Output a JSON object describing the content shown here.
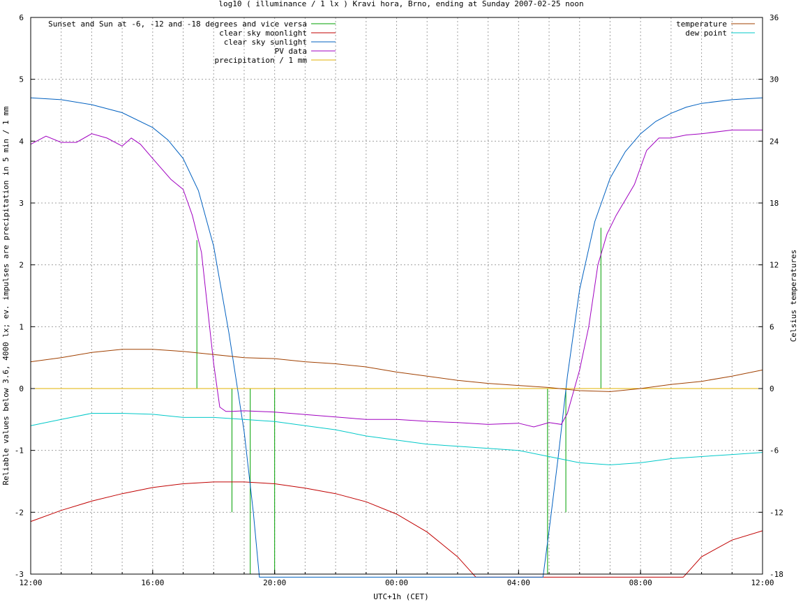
{
  "chart_data": {
    "type": "line",
    "title": "log10 ( illuminance / 1 lx ) Kravi hora, Brno, ending at Sunday 2007-02-25 noon",
    "xlabel": "UTC+1h (CET)",
    "ylabel": "Reliable values below 3.6, 4000 lx; ev. impulses are precipitation in 5 min / 1 mm",
    "y2label": "Celsius temperatures",
    "x_tick_labels": [
      "12:00",
      "16:00",
      "20:00",
      "00:00",
      "04:00",
      "08:00",
      "12:00"
    ],
    "x_tick_hours": [
      0,
      4,
      8,
      12,
      16,
      20,
      24
    ],
    "xlim_hours": [
      0,
      24
    ],
    "ylim": [
      -3,
      6
    ],
    "y_ticks": [
      -3,
      -2,
      -1,
      0,
      1,
      2,
      3,
      4,
      5,
      6
    ],
    "y2lim": [
      -18,
      36
    ],
    "y2_ticks": [
      -18,
      -12,
      -6,
      0,
      6,
      12,
      18,
      24,
      30,
      36
    ],
    "grid": true,
    "legend_left": "top-left",
    "legend_right": "top-right",
    "series": [
      {
        "name": "Sunset and Sun at -6, -12 and -18 degrees and vice versa",
        "kind": "impulses",
        "axis": "y",
        "color": "#00a000",
        "x": [
          17.45,
          18.6,
          19.2,
          20.0,
          4.95,
          5.55,
          6.7
        ],
        "x_hours": [
          5.45,
          6.6,
          7.2,
          8.0,
          16.95,
          17.55,
          18.7
        ],
        "values": [
          2.4,
          -2.0,
          -3.0,
          -3.0,
          -3.0,
          -2.0,
          2.6
        ]
      },
      {
        "name": "clear sky moonlight",
        "kind": "line",
        "axis": "y",
        "color": "#c00000",
        "x_hours": [
          0,
          1,
          2,
          3,
          4,
          5,
          6,
          7,
          8,
          9,
          10,
          11,
          12,
          13,
          14,
          14.6,
          21.4,
          22,
          23,
          24
        ],
        "values": [
          -2.15,
          -1.97,
          -1.82,
          -1.7,
          -1.6,
          -1.54,
          -1.51,
          -1.51,
          -1.54,
          -1.61,
          -1.7,
          -1.83,
          -2.03,
          -2.32,
          -2.72,
          -3.05,
          -3.05,
          -2.72,
          -2.45,
          -2.3
        ]
      },
      {
        "name": "clear sky sunlight",
        "kind": "line",
        "axis": "y",
        "color": "#0060c0",
        "x_hours": [
          0,
          1,
          2,
          3,
          4,
          4.5,
          5,
          5.5,
          6,
          6.5,
          7,
          7.3,
          7.5,
          16.8,
          17,
          17.3,
          17.6,
          18,
          18.5,
          19,
          19.5,
          20,
          20.5,
          21,
          21.5,
          22,
          23,
          24
        ],
        "values": [
          4.7,
          4.67,
          4.59,
          4.46,
          4.22,
          4.02,
          3.72,
          3.2,
          2.3,
          0.9,
          -0.7,
          -2.0,
          -3.05,
          -3.05,
          -2.3,
          -1.1,
          0.2,
          1.6,
          2.7,
          3.4,
          3.83,
          4.12,
          4.32,
          4.45,
          4.55,
          4.61,
          4.67,
          4.7
        ]
      },
      {
        "name": "PV data",
        "kind": "line",
        "axis": "y",
        "color": "#a000c0",
        "x_hours": [
          0,
          0.5,
          1,
          1.5,
          2,
          2.5,
          3,
          3.3,
          3.6,
          4,
          4.3,
          4.6,
          5,
          5.3,
          5.6,
          5.8,
          6,
          6.2,
          6.4,
          6.6,
          7,
          8,
          9,
          10,
          11,
          12,
          13,
          14,
          15,
          16,
          16.5,
          17,
          17.4,
          17.6,
          18,
          18.3,
          18.6,
          18.9,
          19.2,
          19.5,
          19.8,
          20.2,
          20.6,
          21,
          21.5,
          22,
          23,
          24
        ],
        "values": [
          3.95,
          4.08,
          3.98,
          3.98,
          4.12,
          4.05,
          3.92,
          4.05,
          3.95,
          3.72,
          3.55,
          3.38,
          3.22,
          2.8,
          2.2,
          1.3,
          0.4,
          -0.3,
          -0.37,
          -0.37,
          -0.36,
          -0.38,
          -0.42,
          -0.46,
          -0.5,
          -0.5,
          -0.53,
          -0.55,
          -0.58,
          -0.56,
          -0.62,
          -0.55,
          -0.58,
          -0.4,
          0.3,
          1.0,
          2.0,
          2.5,
          2.8,
          3.05,
          3.3,
          3.85,
          4.05,
          4.05,
          4.1,
          4.12,
          4.18,
          4.18
        ]
      },
      {
        "name": "precipitation / 1 mm",
        "kind": "line",
        "axis": "y",
        "color": "#e0b000",
        "x_hours": [
          0,
          24
        ],
        "values": [
          0,
          0
        ]
      },
      {
        "name": "temperature",
        "kind": "line",
        "axis": "y2",
        "color": "#a04000",
        "x_hours": [
          0,
          1,
          2,
          3,
          4,
          5,
          6,
          7,
          8,
          9,
          10,
          11,
          12,
          13,
          14,
          15,
          16,
          17,
          18,
          19,
          20,
          21,
          22,
          23,
          24
        ],
        "values": [
          2.6,
          3.0,
          3.5,
          3.8,
          3.8,
          3.6,
          3.3,
          3.0,
          2.9,
          2.6,
          2.4,
          2.1,
          1.6,
          1.2,
          0.8,
          0.5,
          0.3,
          0.1,
          -0.2,
          -0.3,
          0.0,
          0.4,
          0.7,
          1.2,
          1.8
        ]
      },
      {
        "name": "dew point",
        "kind": "line",
        "axis": "y2",
        "color": "#00c8c8",
        "x_hours": [
          0,
          1,
          2,
          3,
          4,
          5,
          6,
          7,
          8,
          9,
          10,
          11,
          12,
          13,
          14,
          15,
          16,
          17,
          18,
          19,
          20,
          21,
          22,
          23,
          24
        ],
        "values": [
          -3.6,
          -3.0,
          -2.4,
          -2.4,
          -2.5,
          -2.8,
          -2.8,
          -3.0,
          -3.2,
          -3.6,
          -4.0,
          -4.6,
          -5.0,
          -5.4,
          -5.6,
          -5.8,
          -6.0,
          -6.6,
          -7.2,
          -7.4,
          -7.2,
          -6.8,
          -6.6,
          -6.4,
          -6.2
        ]
      }
    ]
  }
}
